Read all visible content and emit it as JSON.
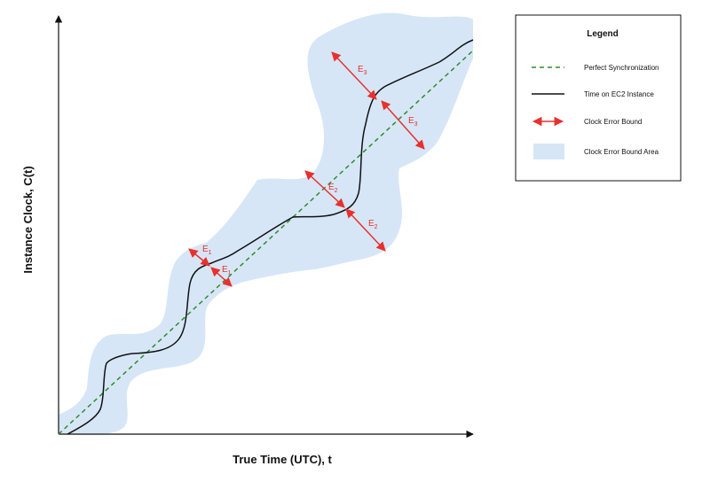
{
  "axes": {
    "x_label": "True Time (UTC), t",
    "y_label": "Instance Clock, C(t)"
  },
  "legend": {
    "title": "Legend",
    "items": [
      {
        "label": "Perfect Synchronization",
        "style": "dashed-line",
        "color": "#2e8b2e"
      },
      {
        "label": "Time on EC2 Instance",
        "style": "solid-line",
        "color": "#111111"
      },
      {
        "label": "Clock Error Bound",
        "style": "double-arrow",
        "color": "#e8302c"
      },
      {
        "label": "Clock Error Bound Area",
        "style": "filled-area",
        "color": "#d6e6f7"
      }
    ]
  },
  "error_labels": [
    {
      "base": "E",
      "sub": "3"
    },
    {
      "base": "E",
      "sub": "3"
    },
    {
      "base": "E",
      "sub": "2"
    },
    {
      "base": "E",
      "sub": "2"
    },
    {
      "base": "E",
      "sub": "1"
    },
    {
      "base": "E",
      "sub": "1"
    }
  ],
  "colors": {
    "area": "#d6e6f7",
    "sync_line": "#2e8b2e",
    "clock_line": "#111111",
    "error_arrow": "#e8302c"
  }
}
